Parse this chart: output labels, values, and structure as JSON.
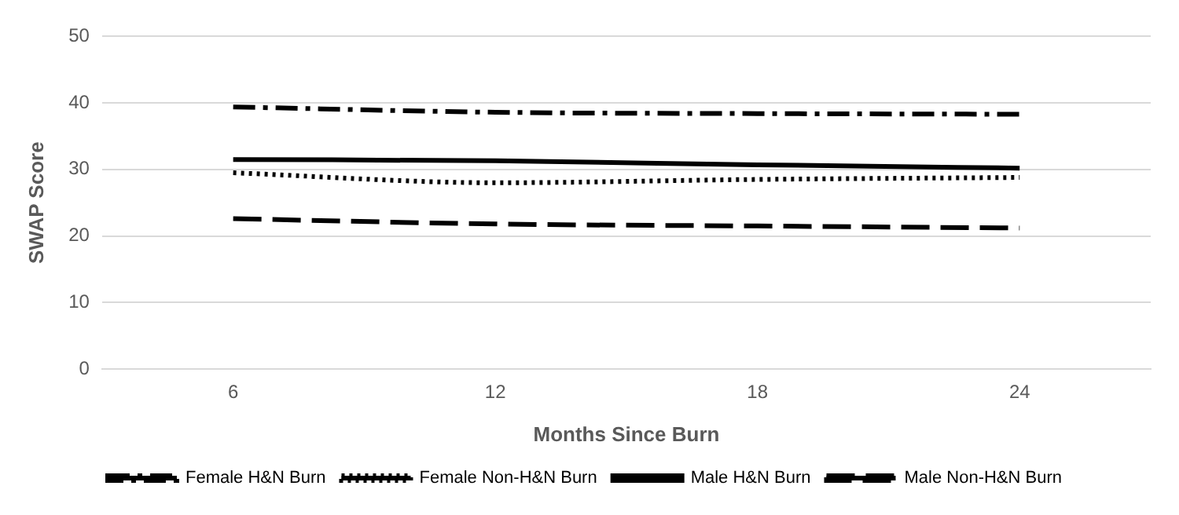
{
  "chart_data": {
    "type": "line",
    "xlabel": "Months Since Burn",
    "ylabel": "SWAP Score",
    "categories": [
      "6",
      "12",
      "18",
      "24"
    ],
    "ylim": [
      0,
      50
    ],
    "yticks": [
      0,
      10,
      20,
      30,
      40,
      50
    ],
    "grid": "y",
    "legend": "bottom",
    "marker": "none",
    "series": [
      {
        "name": "Female H&N Burn",
        "color": "#000000",
        "line_style": "dashed",
        "values": [
          39.4,
          38.6,
          38.4,
          38.3
        ]
      },
      {
        "name": "Female Non-H&N Burn",
        "color": "#000000",
        "line_style": "dotted",
        "values": [
          29.5,
          28.0,
          28.5,
          28.8
        ]
      },
      {
        "name": "Male H&N Burn",
        "color": "#000000",
        "line_style": "solid",
        "values": [
          31.5,
          31.3,
          30.7,
          30.2
        ]
      },
      {
        "name": "Male Non-H&N Burn",
        "color": "#000000",
        "line_style": "dashed",
        "values": [
          22.6,
          21.8,
          21.5,
          21.2
        ]
      }
    ]
  }
}
